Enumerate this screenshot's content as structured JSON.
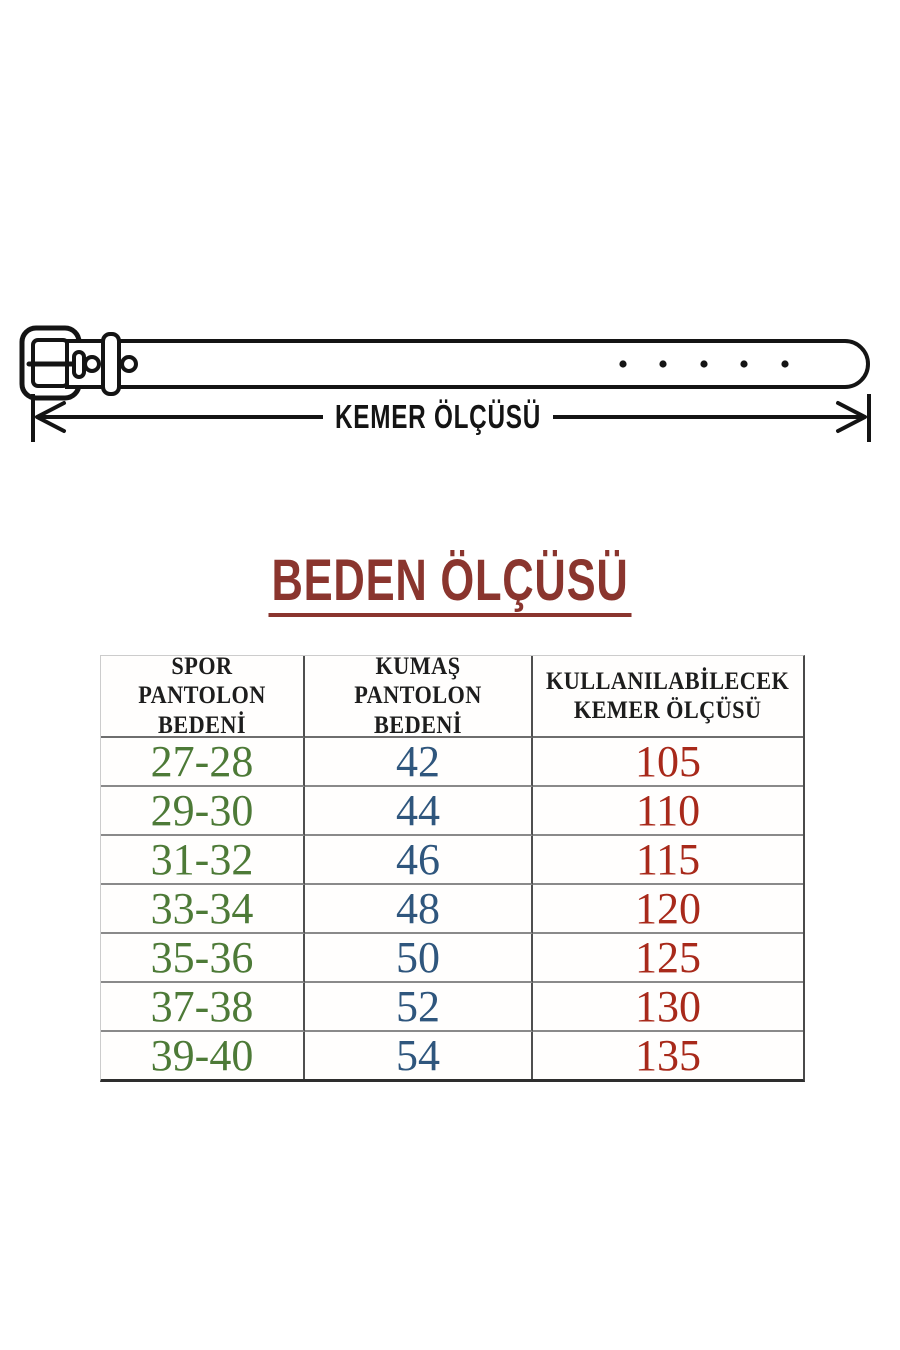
{
  "belt_diagram": {
    "label": "KEMER ÖLÇÜSÜ",
    "buckle_hole_count": 2,
    "tail_hole_count": 5
  },
  "title": {
    "text": "BEDEN ÖLÇÜSÜ"
  },
  "size_table": {
    "headers": [
      "SPOR PANTOLON BEDENİ",
      "KUMAŞ PANTOLON BEDENİ",
      "KULLANILABİLECEK KEMER ÖLÇÜSÜ"
    ],
    "rows": [
      [
        "27-28",
        "42",
        "105"
      ],
      [
        "29-30",
        "44",
        "110"
      ],
      [
        "31-32",
        "46",
        "115"
      ],
      [
        "33-34",
        "48",
        "120"
      ],
      [
        "35-36",
        "50",
        "125"
      ],
      [
        "37-38",
        "52",
        "130"
      ],
      [
        "39-40",
        "54",
        "135"
      ]
    ]
  },
  "colors": {
    "title": "#8a352e",
    "spor_column": "#4d7a37",
    "kumas_column": "#2f567d",
    "kemer_column": "#a8291a",
    "line_art": "#141414"
  }
}
